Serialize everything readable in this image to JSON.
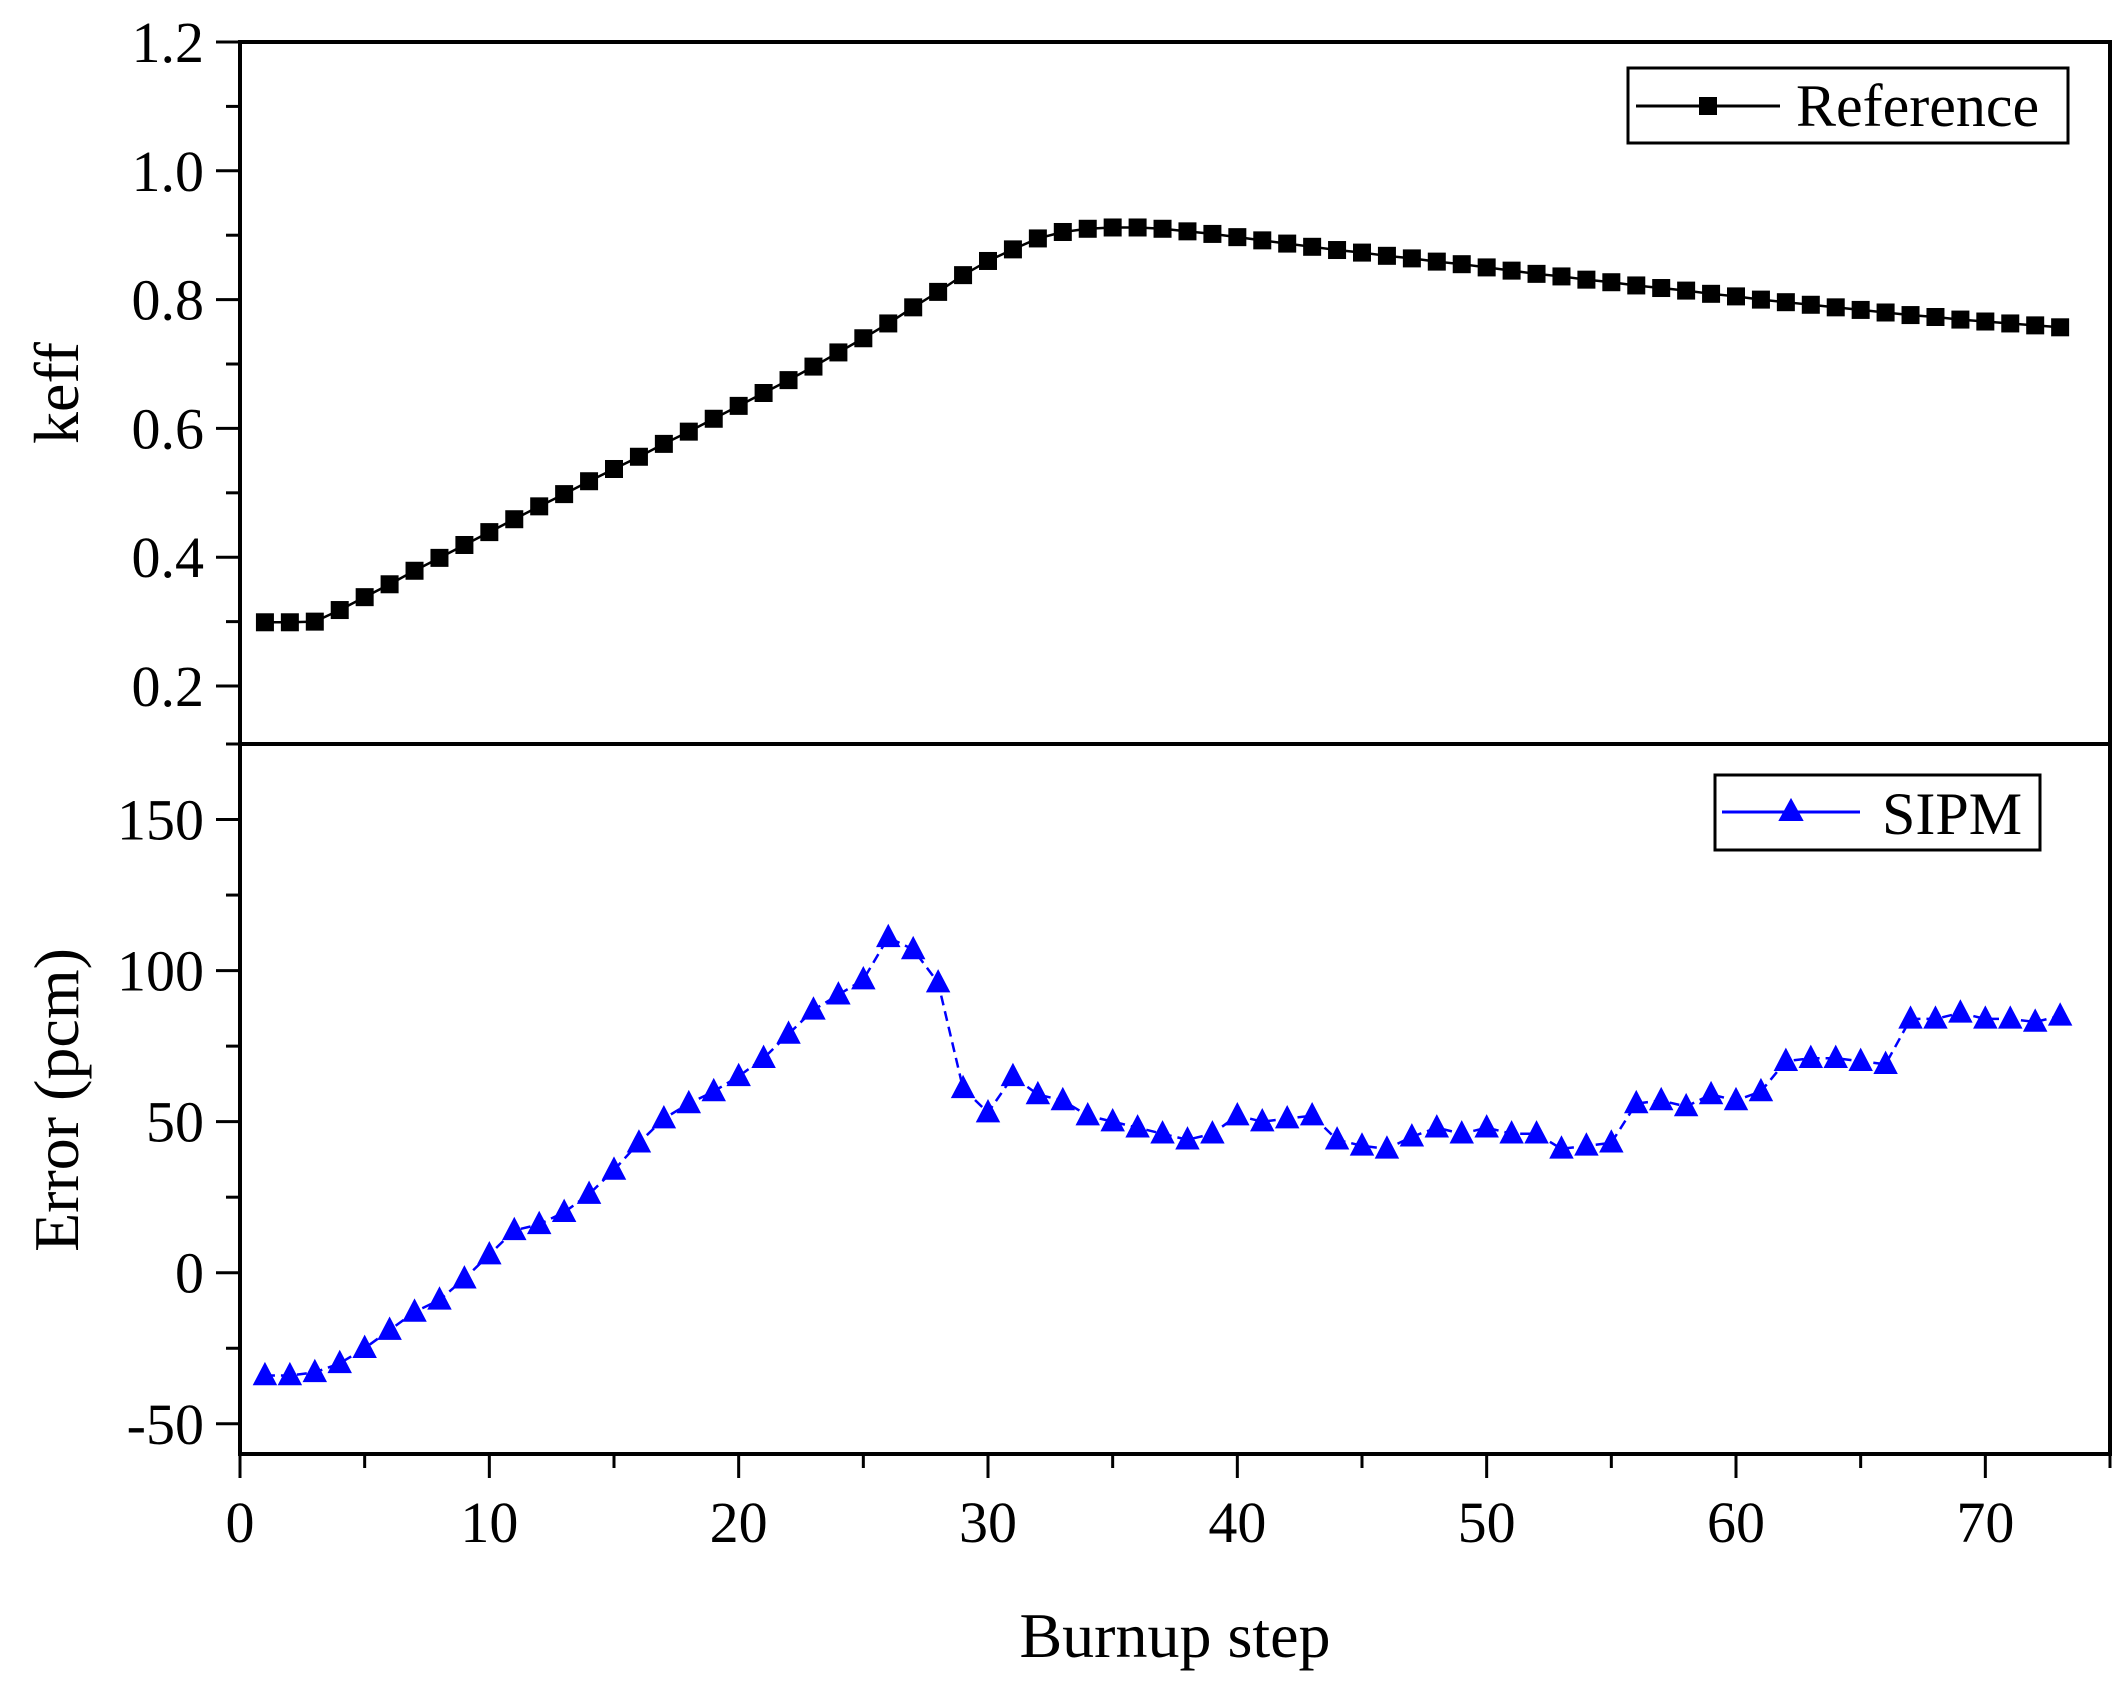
{
  "chart_data": {
    "type": "line",
    "xlabel": "Burnup step",
    "xlim": [
      0,
      75
    ],
    "xticks": [
      0,
      10,
      20,
      30,
      40,
      50,
      60,
      70
    ],
    "x": [
      1,
      2,
      3,
      4,
      5,
      6,
      7,
      8,
      9,
      10,
      11,
      12,
      13,
      14,
      15,
      16,
      17,
      18,
      19,
      20,
      21,
      22,
      23,
      24,
      25,
      26,
      27,
      28,
      29,
      30,
      31,
      32,
      33,
      34,
      35,
      36,
      37,
      38,
      39,
      40,
      41,
      42,
      43,
      44,
      45,
      46,
      47,
      48,
      49,
      50,
      51,
      52,
      53,
      54,
      55,
      56,
      57,
      58,
      59,
      60,
      61,
      62,
      63,
      64,
      65,
      66,
      67,
      68,
      69,
      70,
      71,
      72,
      73
    ],
    "panels": [
      {
        "ylabel": "keff",
        "ylim": [
          0.11,
          1.2
        ],
        "yticks": [
          0.2,
          0.4,
          0.6,
          0.8,
          1.0,
          1.2
        ],
        "ytick_labels": [
          "0.2",
          "0.4",
          "0.6",
          "0.8",
          "1.0",
          "1.2"
        ],
        "series": [
          {
            "name": "Reference",
            "color": "#000000",
            "marker": "square",
            "values": [
              0.299,
              0.299,
              0.3,
              0.318,
              0.338,
              0.358,
              0.379,
              0.399,
              0.419,
              0.439,
              0.459,
              0.479,
              0.498,
              0.518,
              0.537,
              0.556,
              0.576,
              0.595,
              0.615,
              0.635,
              0.655,
              0.675,
              0.696,
              0.718,
              0.74,
              0.763,
              0.788,
              0.812,
              0.838,
              0.86,
              0.878,
              0.895,
              0.905,
              0.91,
              0.912,
              0.912,
              0.91,
              0.906,
              0.902,
              0.897,
              0.892,
              0.887,
              0.882,
              0.877,
              0.873,
              0.868,
              0.864,
              0.859,
              0.855,
              0.85,
              0.845,
              0.84,
              0.836,
              0.831,
              0.827,
              0.822,
              0.818,
              0.814,
              0.809,
              0.805,
              0.8,
              0.796,
              0.792,
              0.788,
              0.784,
              0.78,
              0.776,
              0.773,
              0.769,
              0.766,
              0.763,
              0.76,
              0.757
            ]
          }
        ]
      },
      {
        "ylabel": "Error (pcm)",
        "ylim": [
          -60,
          175
        ],
        "yticks": [
          -50,
          0,
          50,
          100,
          150
        ],
        "ytick_labels": [
          "-50",
          "0",
          "50",
          "100",
          "150"
        ],
        "series": [
          {
            "name": "SIPM",
            "color": "#0000ff",
            "marker": "triangle",
            "values": [
              -34,
              -34,
              -33,
              -30,
              -25,
              -19,
              -13,
              -9,
              -2,
              6,
              14,
              16,
              20,
              26,
              34,
              43,
              51,
              56,
              60,
              65,
              71,
              79,
              87,
              92,
              97,
              111,
              107,
              96,
              61,
              53,
              65,
              59,
              57,
              52,
              50,
              48,
              46,
              44,
              46,
              52,
              50,
              51,
              52,
              44,
              42,
              41,
              45,
              48,
              46,
              48,
              46,
              46,
              41,
              42,
              43,
              56,
              57,
              55,
              59,
              57,
              60,
              70,
              71,
              71,
              70,
              69,
              84,
              84,
              86,
              84,
              84,
              83,
              85
            ]
          }
        ]
      }
    ]
  }
}
